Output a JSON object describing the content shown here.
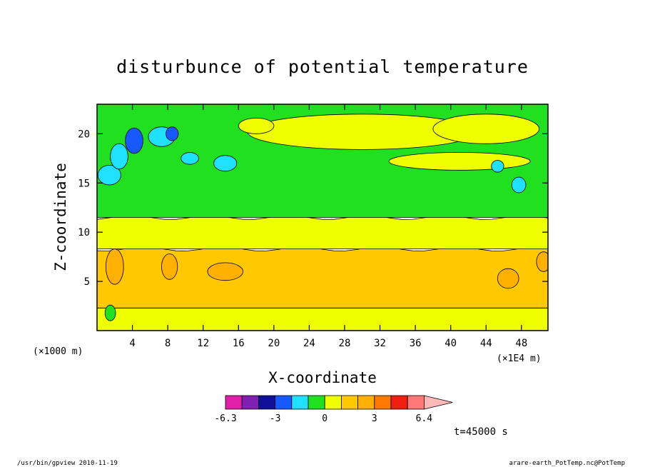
{
  "chart_data": {
    "type": "heatmap",
    "title": "disturbunce of potential temperature",
    "xlabel": "X-coordinate",
    "ylabel": "Z-coordinate",
    "x_unit_label": "(×1E4 m)",
    "y_unit_label": "(×1000 m)",
    "xlim": [
      0,
      51
    ],
    "ylim": [
      0,
      23
    ],
    "x_ticks": [
      4,
      8,
      12,
      16,
      20,
      24,
      28,
      32,
      36,
      40,
      44,
      48
    ],
    "y_ticks": [
      5,
      10,
      15,
      20
    ],
    "colorbar": {
      "colors": [
        "#e020a8",
        "#8020b0",
        "#10109a",
        "#1858ff",
        "#20e0ff",
        "#20e020",
        "#f0ff00",
        "#ffc800",
        "#ffb000",
        "#ff7800",
        "#f02010",
        "#ff7878",
        "#ffb8b8"
      ],
      "tick_labels": [
        "-6.3",
        "-3",
        "0",
        "3",
        "6.4"
      ]
    },
    "bands": [
      {
        "z_bottom": 0,
        "z_top": 2.3,
        "color": "#f0ff00"
      },
      {
        "z_bottom": 2.3,
        "z_top": 8.3,
        "color": "#ffc800"
      },
      {
        "z_bottom": 8.3,
        "z_top": 11.5,
        "color": "#f0ff00"
      },
      {
        "z_bottom": 11.5,
        "z_top": 23,
        "color": "#20e020"
      }
    ],
    "features": [
      {
        "x": 30,
        "z": 20.2,
        "rx": 13,
        "rz": 1.8,
        "color": "#f0ff00"
      },
      {
        "x": 44,
        "z": 20.5,
        "rx": 6,
        "rz": 1.5,
        "color": "#f0ff00"
      },
      {
        "x": 18,
        "z": 20.8,
        "rx": 2,
        "rz": 0.8,
        "color": "#f0ff00"
      },
      {
        "x": 41,
        "z": 17.2,
        "rx": 8,
        "rz": 0.9,
        "color": "#f0ff00"
      },
      {
        "x": 4.2,
        "z": 19.3,
        "rx": 1.0,
        "rz": 1.3,
        "color": "#1858ff"
      },
      {
        "x": 7.3,
        "z": 19.7,
        "rx": 1.5,
        "rz": 1.0,
        "color": "#20e0ff"
      },
      {
        "x": 1.4,
        "z": 15.8,
        "rx": 1.3,
        "rz": 1.0,
        "color": "#20e0ff"
      },
      {
        "x": 2.5,
        "z": 17.7,
        "rx": 1.0,
        "rz": 1.3,
        "color": "#20e0ff"
      },
      {
        "x": 14.5,
        "z": 17.0,
        "rx": 1.3,
        "rz": 0.8,
        "color": "#20e0ff"
      },
      {
        "x": 10.5,
        "z": 17.5,
        "rx": 1.0,
        "rz": 0.6,
        "color": "#20e0ff"
      },
      {
        "x": 47.7,
        "z": 14.8,
        "rx": 0.8,
        "rz": 0.8,
        "color": "#20e0ff"
      },
      {
        "x": 45.3,
        "z": 16.7,
        "rx": 0.7,
        "rz": 0.6,
        "color": "#20e0ff"
      },
      {
        "x": 8.5,
        "z": 20.0,
        "rx": 0.7,
        "rz": 0.7,
        "color": "#1858ff"
      },
      {
        "x": 2.0,
        "z": 6.5,
        "rx": 1.0,
        "rz": 1.8,
        "color": "#ffb000"
      },
      {
        "x": 8.2,
        "z": 6.5,
        "rx": 0.9,
        "rz": 1.3,
        "color": "#ffb000"
      },
      {
        "x": 14.5,
        "z": 6.0,
        "rx": 2.0,
        "rz": 0.9,
        "color": "#ffb000"
      },
      {
        "x": 46.5,
        "z": 5.3,
        "rx": 1.2,
        "rz": 1.0,
        "color": "#ffb000"
      },
      {
        "x": 50.5,
        "z": 7.0,
        "rx": 0.8,
        "rz": 1.0,
        "color": "#ffb000"
      },
      {
        "x": 1.5,
        "z": 1.8,
        "rx": 0.6,
        "rz": 0.8,
        "color": "#20e020"
      }
    ],
    "time_label": "t=45000 s"
  },
  "footer": {
    "left": "/usr/bin/gpview  2010-11-19",
    "right": "arare-earth_PotTemp.nc@PotTemp"
  }
}
